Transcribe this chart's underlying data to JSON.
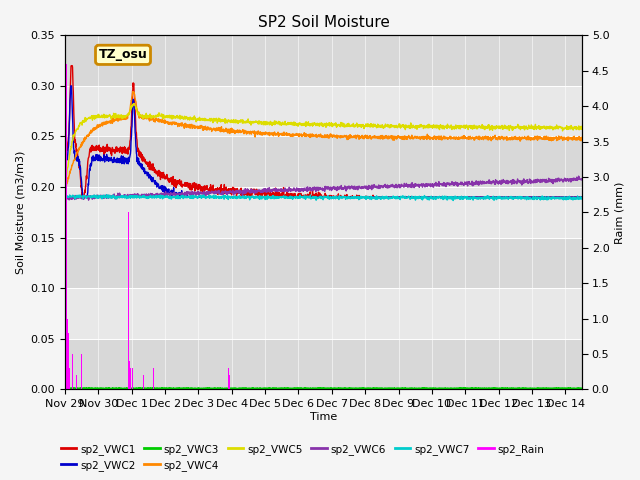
{
  "title": "SP2 Soil Moisture",
  "xlabel": "Time",
  "ylabel_left": "Soil Moisture (m3/m3)",
  "ylabel_right": "Raim (mm)",
  "xlim_days": [
    0,
    15.5
  ],
  "ylim_left": [
    0.0,
    0.35
  ],
  "ylim_right": [
    0.0,
    5.0
  ],
  "yticks_left": [
    0.0,
    0.05,
    0.1,
    0.15,
    0.2,
    0.25,
    0.3,
    0.35
  ],
  "yticks_right": [
    0.0,
    0.5,
    1.0,
    1.5,
    2.0,
    2.5,
    3.0,
    3.5,
    4.0,
    4.5,
    5.0
  ],
  "xtick_positions": [
    0,
    1,
    2,
    3,
    4,
    5,
    6,
    7,
    8,
    9,
    10,
    11,
    12,
    13,
    14,
    15
  ],
  "xtick_labels": [
    "Nov 29",
    "Nov 30",
    "Dec 1",
    "Dec 2",
    "Dec 3",
    "Dec 4",
    "Dec 5",
    "Dec 6",
    "Dec 7",
    "Dec 8",
    "Dec 9",
    "Dec 10",
    "Dec 11",
    "Dec 12",
    "Dec 13",
    "Dec 14"
  ],
  "fig_bg": "#f5f5f5",
  "plot_bg_light": "#e8e8e8",
  "plot_bg_dark": "#d8d8d8",
  "annotation_text": "TZ_osu",
  "annotation_face": "#ffffcc",
  "annotation_edge": "#cc8800",
  "colors": {
    "VWC1": "#dd0000",
    "VWC2": "#0000cc",
    "VWC3": "#00cc00",
    "VWC4": "#ff8800",
    "VWC5": "#dddd00",
    "VWC6": "#8833aa",
    "VWC7": "#00cccc",
    "Rain": "#ff00ff"
  },
  "rain_times": [
    0.05,
    0.08,
    0.1,
    0.12,
    0.14,
    0.18,
    0.22,
    0.27,
    0.35,
    0.5,
    0.6,
    1.9,
    1.94,
    1.97,
    2.02,
    2.35,
    2.55,
    2.65,
    4.9,
    4.93
  ],
  "rain_heights_mm": [
    4.6,
    1.0,
    0.8,
    0.5,
    0.3,
    0.4,
    0.5,
    0.2,
    0.2,
    0.5,
    0.3,
    2.5,
    0.4,
    0.3,
    0.3,
    0.2,
    0.2,
    0.3,
    0.3,
    0.2
  ]
}
